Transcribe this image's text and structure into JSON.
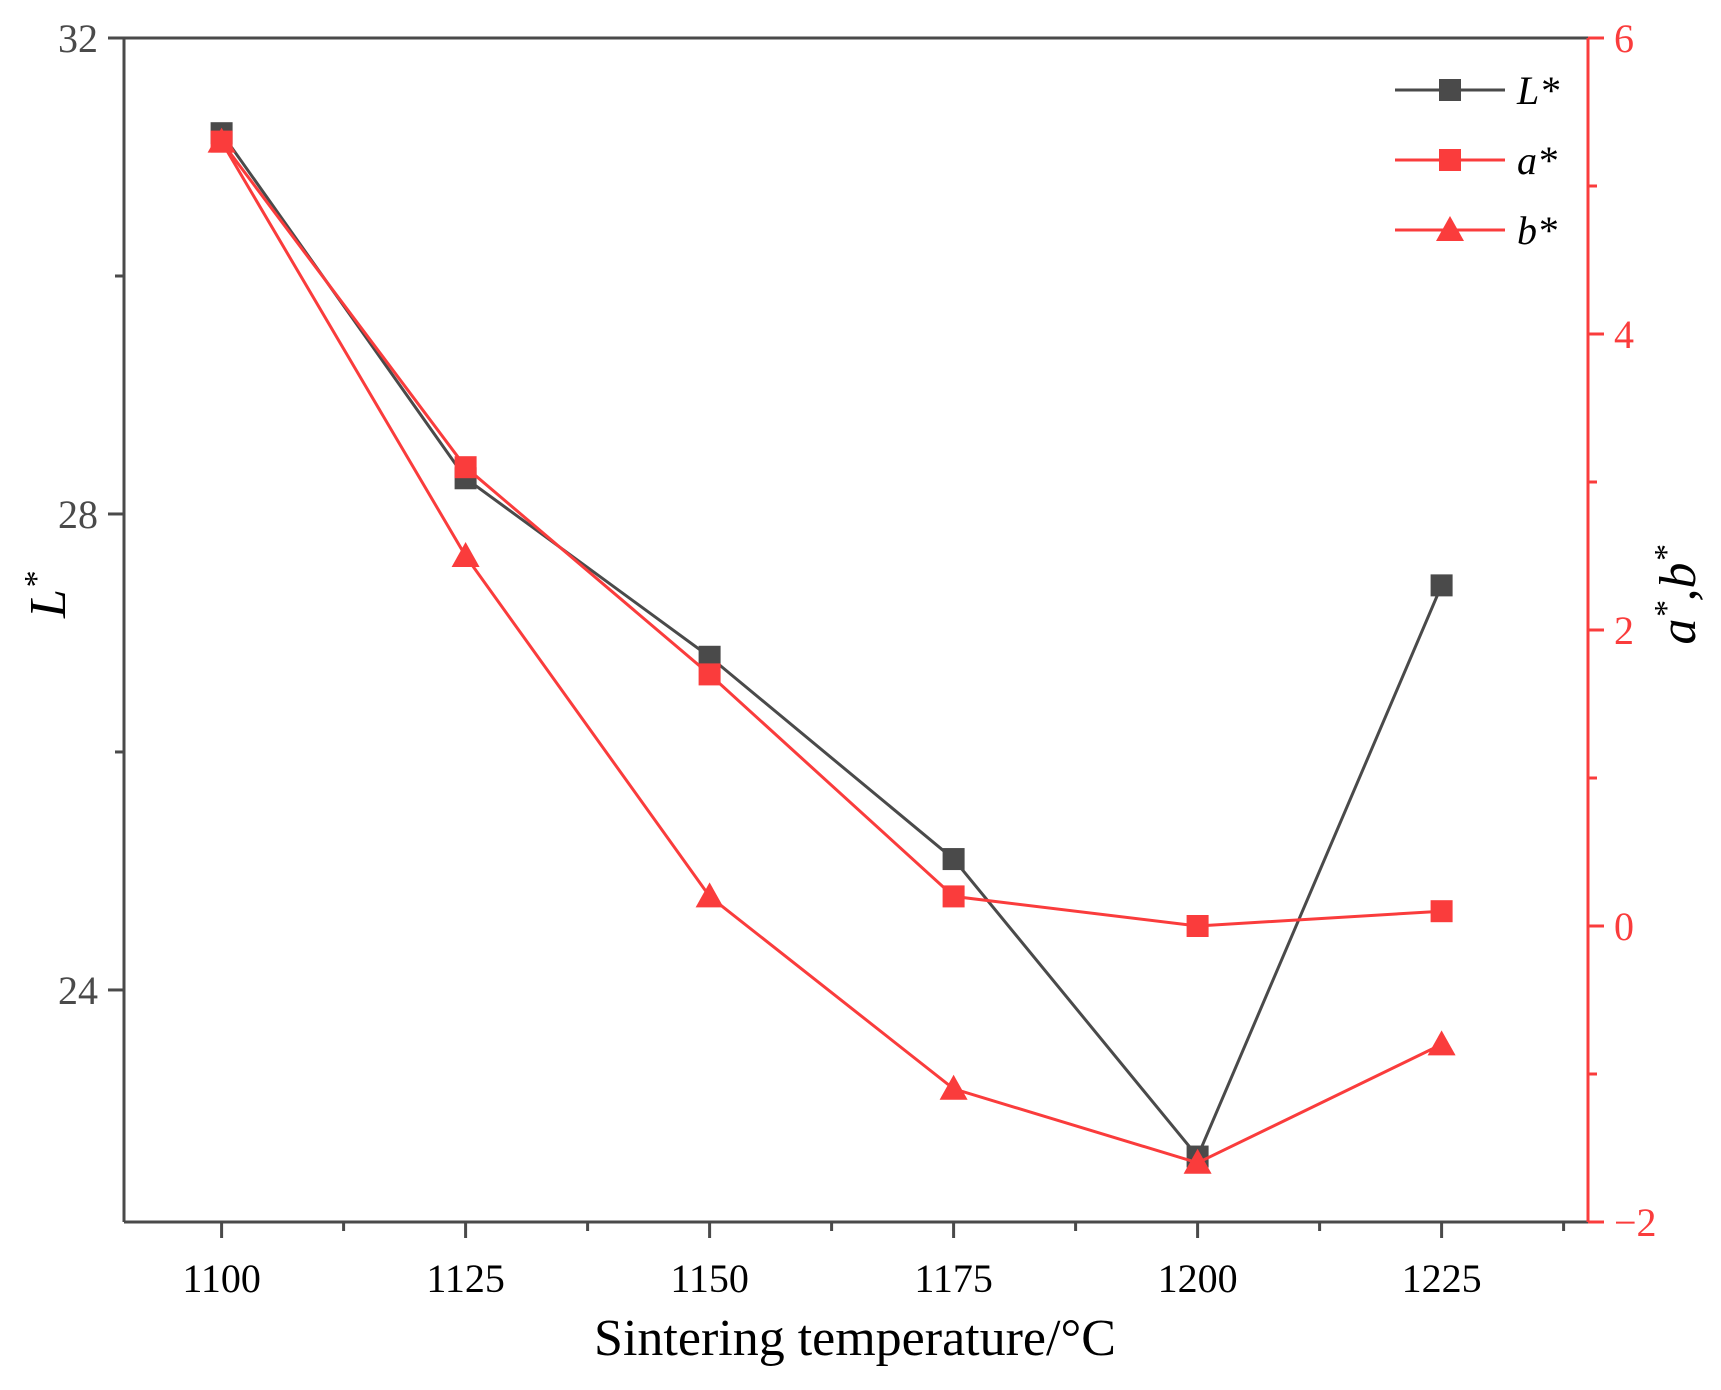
{
  "chart_data": {
    "type": "line",
    "xlabel": "Sintering temperature/°C",
    "x": [
      1100,
      1125,
      1150,
      1175,
      1200,
      1225
    ],
    "xlim": [
      1090,
      1240
    ],
    "xticks": [
      1100,
      1125,
      1150,
      1175,
      1200,
      1225
    ],
    "y_left": {
      "label_main": "L",
      "label_sup": "*",
      "lim": [
        22.05,
        32
      ],
      "ticks": [
        24,
        28,
        32
      ],
      "minor_ticks": [
        26,
        30
      ]
    },
    "y_right": {
      "label_a": "a",
      "label_sep": ",",
      "label_b": "b",
      "label_sup": "*",
      "lim": [
        -2,
        6
      ],
      "ticks": [
        -2,
        0,
        2,
        4,
        6
      ],
      "tick_labels": [
        "−2",
        "0",
        "2",
        "4",
        "6"
      ],
      "minor_ticks": [
        -1,
        1,
        3,
        5
      ]
    },
    "series": [
      {
        "name": "L*",
        "axis": "left",
        "marker": "square",
        "color": "#4a4a4a",
        "values": [
          31.2,
          28.3,
          26.8,
          25.1,
          22.6,
          27.4
        ]
      },
      {
        "name": "a*",
        "axis": "right",
        "marker": "square",
        "color": "#fa3c3c",
        "values": [
          5.3,
          3.1,
          1.7,
          0.2,
          0.0,
          0.1
        ]
      },
      {
        "name": "b*",
        "axis": "right",
        "marker": "triangle",
        "color": "#fa3c3c",
        "values": [
          5.3,
          2.5,
          0.2,
          -1.1,
          -1.6,
          -0.8
        ]
      }
    ],
    "legend": {
      "position": "top-right",
      "entries": [
        "L*",
        "a*",
        "b*"
      ]
    }
  }
}
